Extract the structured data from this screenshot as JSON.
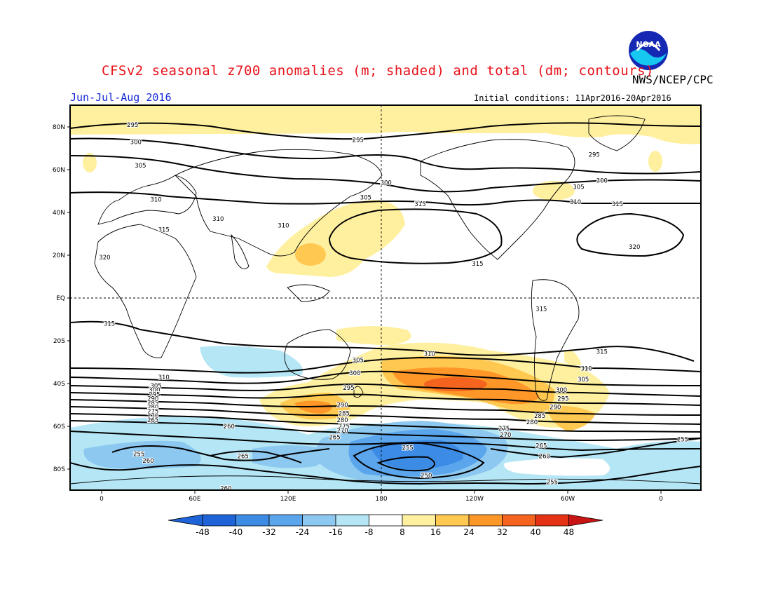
{
  "title": "CFSv2 seasonal z700 anomalies (m; shaded) and total (dm; contours)",
  "agency": "NWS/NCEP/CPC",
  "season": "Jun-Jul-Aug 2016",
  "initial_conditions": "Initial conditions: 11Apr2016-20Apr2016",
  "logo_text": "NOAA",
  "colors": {
    "title": "#e8141c",
    "season": "#1428d8",
    "neg48": "#1e64d8",
    "neg40": "#3c8ce6",
    "neg32": "#5aa5ec",
    "neg24": "#8cc8f0",
    "neg16": "#b4e6f5",
    "neg8": "#ffffff",
    "pos8": "#fff0a0",
    "pos16": "#ffc850",
    "pos24": "#ff9628",
    "pos32": "#f5641e",
    "pos40": "#e63214",
    "pos48": "#c81414"
  },
  "lat_labels": [
    "80N",
    "60N",
    "40N",
    "20N",
    "EQ",
    "20S",
    "40S",
    "60S",
    "80S"
  ],
  "lon_labels": [
    "0",
    "60E",
    "120E",
    "180",
    "120W",
    "60W",
    "0"
  ],
  "colorbar_labels": [
    "-48",
    "-40",
    "-32",
    "-24",
    "-16",
    "-8",
    "8",
    "16",
    "24",
    "32",
    "40",
    "48"
  ],
  "contour_labels": [
    {
      "text": "295",
      "lon": 20,
      "lat": 81
    },
    {
      "text": "300",
      "lon": 22,
      "lat": 73
    },
    {
      "text": "305",
      "lon": 25,
      "lat": 62
    },
    {
      "text": "310",
      "lon": 35,
      "lat": 46
    },
    {
      "text": "315",
      "lon": 40,
      "lat": 32
    },
    {
      "text": "310",
      "lon": 75,
      "lat": 37
    },
    {
      "text": "320",
      "lon": 2,
      "lat": 19
    },
    {
      "text": "315",
      "lon": 5,
      "lat": -12
    },
    {
      "text": "295",
      "lon": 165,
      "lat": 74
    },
    {
      "text": "300",
      "lon": 183,
      "lat": 54
    },
    {
      "text": "305",
      "lon": 170,
      "lat": 47
    },
    {
      "text": "315",
      "lon": 205,
      "lat": 44
    },
    {
      "text": "310",
      "lon": 117,
      "lat": 34
    },
    {
      "text": "315",
      "lon": 242,
      "lat": 16
    },
    {
      "text": "315",
      "lon": 283,
      "lat": -5
    },
    {
      "text": "315",
      "lon": 322,
      "lat": -25
    },
    {
      "text": "310",
      "lon": 312,
      "lat": -33
    },
    {
      "text": "305",
      "lon": 310,
      "lat": -38
    },
    {
      "text": "300",
      "lon": 296,
      "lat": -43
    },
    {
      "text": "295",
      "lon": 297,
      "lat": -47
    },
    {
      "text": "290",
      "lon": 292,
      "lat": -51
    },
    {
      "text": "285",
      "lon": 282,
      "lat": -55
    },
    {
      "text": "280",
      "lon": 277,
      "lat": -58
    },
    {
      "text": "275",
      "lon": 259,
      "lat": -61
    },
    {
      "text": "270",
      "lon": 260,
      "lat": -64
    },
    {
      "text": "265",
      "lon": 283,
      "lat": -69
    },
    {
      "text": "260",
      "lon": 285,
      "lat": -74
    },
    {
      "text": "255",
      "lon": 290,
      "lat": -86
    },
    {
      "text": "310",
      "lon": 211,
      "lat": -26
    },
    {
      "text": "305",
      "lon": 165,
      "lat": -29
    },
    {
      "text": "300",
      "lon": 163,
      "lat": -35
    },
    {
      "text": "295",
      "lon": 159,
      "lat": -42
    },
    {
      "text": "290",
      "lon": 155,
      "lat": -50
    },
    {
      "text": "285",
      "lon": 156,
      "lat": -54
    },
    {
      "text": "280",
      "lon": 155,
      "lat": -57
    },
    {
      "text": "275",
      "lon": 156,
      "lat": -60
    },
    {
      "text": "270",
      "lon": 155,
      "lat": -62
    },
    {
      "text": "265",
      "lon": 150,
      "lat": -65
    },
    {
      "text": "260",
      "lon": 82,
      "lat": -60
    },
    {
      "text": "255",
      "lon": 197,
      "lat": -70
    },
    {
      "text": "250",
      "lon": 209,
      "lat": -83
    },
    {
      "text": "265",
      "lon": 91,
      "lat": -74
    },
    {
      "text": "255",
      "lon": 24,
      "lat": -73
    },
    {
      "text": "260",
      "lon": 30,
      "lat": -76
    },
    {
      "text": "310",
      "lon": 40,
      "lat": -37
    },
    {
      "text": "305",
      "lon": 35,
      "lat": -41
    },
    {
      "text": "300",
      "lon": 34,
      "lat": -43
    },
    {
      "text": "295",
      "lon": 34,
      "lat": -45
    },
    {
      "text": "290",
      "lon": 33,
      "lat": -47
    },
    {
      "text": "285",
      "lon": 33,
      "lat": -49
    },
    {
      "text": "280",
      "lon": 33,
      "lat": -51
    },
    {
      "text": "275",
      "lon": 33,
      "lat": -53
    },
    {
      "text": "270",
      "lon": 33,
      "lat": -55
    },
    {
      "text": "265",
      "lon": 33,
      "lat": -57
    },
    {
      "text": "305",
      "lon": 307,
      "lat": 52
    },
    {
      "text": "310",
      "lon": 305,
      "lat": 45
    },
    {
      "text": "315",
      "lon": 332,
      "lat": 44
    },
    {
      "text": "320",
      "lon": 343,
      "lat": 24
    },
    {
      "text": "300",
      "lon": 322,
      "lat": 55
    },
    {
      "text": "295",
      "lon": 317,
      "lat": 67
    },
    {
      "text": "255",
      "lon": 374,
      "lat": -66
    },
    {
      "text": "260",
      "lon": 80,
      "lat": -89
    }
  ]
}
